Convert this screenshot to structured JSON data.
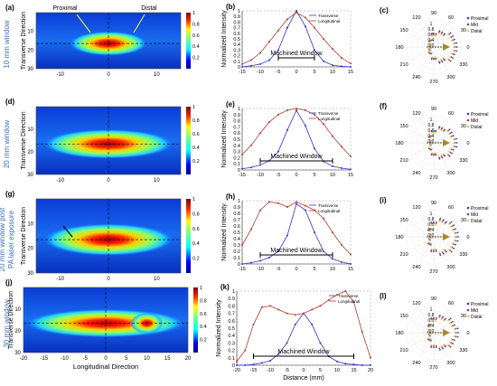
{
  "heatmap_rows": [
    {
      "row_label": "10 mm window",
      "panel_letter": "(a)",
      "ylabel": "Transverse Direction",
      "xlabel": "",
      "xticks": [
        -10,
        0,
        10
      ],
      "yticks": [
        10,
        20,
        30
      ],
      "ylim": [
        0,
        30
      ],
      "colorbar_ticks": [
        0.2,
        0.4,
        0.6,
        0.8,
        1
      ],
      "annotations": [
        "Proximal",
        "Distal"
      ],
      "window_mm": 10
    },
    {
      "row_label": "20 mm window",
      "panel_letter": "(d)",
      "ylabel": "Transverse Direction",
      "xlabel": "",
      "xticks": [
        -10,
        0,
        10
      ],
      "yticks": [
        10,
        20,
        30
      ],
      "ylim": [
        0,
        30
      ],
      "colorbar_ticks": [
        0.2,
        0.4,
        0.6,
        0.8,
        1
      ],
      "annotations": [],
      "window_mm": 20
    },
    {
      "row_label": "20 mm window post PA laser exposure",
      "row_label_lines": [
        "20 mm window post",
        "PA laser exposure"
      ],
      "panel_letter": "(g)",
      "ylabel": "Transverse Direction",
      "xlabel": "",
      "xticks": [
        -10,
        0,
        10
      ],
      "yticks": [
        10,
        20,
        30
      ],
      "ylim": [
        0,
        30
      ],
      "colorbar_ticks": [
        0.2,
        0.4,
        0.6,
        0.8,
        1
      ],
      "annotations": [],
      "window_mm": 20
    },
    {
      "row_label": "30 mm window",
      "panel_letter": "(j)",
      "ylabel": "Transverse Direction",
      "xlabel": "Longitudinal Direction",
      "xticks": [
        -20,
        -15,
        -10,
        -5,
        0,
        5,
        10,
        15,
        20
      ],
      "yticks": [
        10,
        20,
        30
      ],
      "ylim": [
        0,
        30
      ],
      "colorbar_ticks": [
        0.2,
        0.4,
        0.6,
        0.8,
        1
      ],
      "annotations": [],
      "window_mm": 30
    }
  ],
  "chart_data": [
    {
      "type": "line",
      "panel_letter": "(b)",
      "ylabel": "Normalized Intensity",
      "xlabel": "",
      "xlim": [
        -15,
        15
      ],
      "ylim": [
        0,
        1
      ],
      "xticks": [
        -15,
        -10,
        -5,
        0,
        5,
        10,
        15
      ],
      "yticks": [
        0,
        0.1,
        0.2,
        0.3,
        0.4,
        0.5,
        0.6,
        0.7,
        0.8,
        0.9,
        1
      ],
      "window_label": "Machined Window",
      "window_range": [
        -5,
        5
      ],
      "x": [
        -15,
        -12.5,
        -10,
        -7.5,
        -5,
        -2.5,
        0,
        2.5,
        5,
        7.5,
        10,
        12.5,
        15
      ],
      "series": [
        {
          "name": "Transverse",
          "color": "#3333cc",
          "values": [
            0.0,
            0.02,
            0.05,
            0.12,
            0.3,
            0.7,
            1.0,
            0.72,
            0.3,
            0.1,
            0.03,
            0.01,
            0.0
          ]
        },
        {
          "name": "Longitudinal",
          "color": "#b03a2e",
          "values": [
            0.05,
            0.12,
            0.25,
            0.45,
            0.65,
            0.85,
            0.97,
            0.88,
            0.7,
            0.5,
            0.32,
            0.16,
            0.06
          ]
        }
      ]
    },
    {
      "type": "line",
      "panel_letter": "(e)",
      "ylabel": "Normalized Intensity",
      "xlabel": "",
      "xlim": [
        -15,
        15
      ],
      "ylim": [
        0,
        1
      ],
      "xticks": [
        -15,
        -10,
        -5,
        0,
        5,
        10,
        15
      ],
      "yticks": [
        0,
        0.1,
        0.2,
        0.3,
        0.4,
        0.5,
        0.6,
        0.7,
        0.8,
        0.9,
        1
      ],
      "window_label": "Machined Window",
      "window_range": [
        -10,
        10
      ],
      "x": [
        -15,
        -12.5,
        -10,
        -7.5,
        -5,
        -2.5,
        0,
        2.5,
        5,
        7.5,
        10,
        12.5,
        15
      ],
      "series": [
        {
          "name": "Transverse",
          "color": "#3333cc",
          "values": [
            0.02,
            0.04,
            0.08,
            0.15,
            0.3,
            0.65,
            0.97,
            0.72,
            0.35,
            0.14,
            0.06,
            0.03,
            0.01
          ]
        },
        {
          "name": "Longitudinal",
          "color": "#b03a2e",
          "values": [
            0.25,
            0.4,
            0.6,
            0.78,
            0.9,
            0.97,
            1.0,
            0.97,
            0.9,
            0.75,
            0.55,
            0.38,
            0.22
          ]
        }
      ]
    },
    {
      "type": "line",
      "panel_letter": "(h)",
      "ylabel": "Normalized Intensity",
      "xlabel": "",
      "xlim": [
        -15,
        15
      ],
      "ylim": [
        0,
        1
      ],
      "xticks": [
        -15,
        -10,
        -5,
        0,
        5,
        10,
        15
      ],
      "yticks": [
        0,
        0.1,
        0.2,
        0.3,
        0.4,
        0.5,
        0.6,
        0.7,
        0.8,
        0.9,
        1
      ],
      "window_label": "Machined Window",
      "window_range": [
        -10,
        10
      ],
      "x": [
        -15,
        -12.5,
        -10,
        -7.5,
        -5,
        -2.5,
        0,
        2.5,
        5,
        7.5,
        10,
        12.5,
        15
      ],
      "series": [
        {
          "name": "Transverse",
          "color": "#3333cc",
          "values": [
            0.0,
            0.02,
            0.05,
            0.1,
            0.2,
            0.45,
            0.95,
            0.85,
            0.5,
            0.2,
            0.08,
            0.03,
            0.0
          ]
        },
        {
          "name": "Longitudinal",
          "color": "#b03a2e",
          "values": [
            0.3,
            0.55,
            0.85,
            0.98,
            0.96,
            0.9,
            0.98,
            0.92,
            0.85,
            0.72,
            0.5,
            0.3,
            0.15
          ]
        }
      ]
    },
    {
      "type": "line",
      "panel_letter": "(k)",
      "ylabel": "Normalized Intensity",
      "xlabel": "Distance (mm)",
      "xlim": [
        -20,
        20
      ],
      "ylim": [
        0,
        1
      ],
      "xticks": [
        -20,
        -15,
        -10,
        -5,
        0,
        5,
        10,
        15,
        20
      ],
      "yticks": [
        0,
        0.1,
        0.2,
        0.3,
        0.4,
        0.5,
        0.6,
        0.7,
        0.8,
        0.9,
        1
      ],
      "window_label": "Machined Window",
      "window_range": [
        -15,
        15
      ],
      "x": [
        -20,
        -17.5,
        -15,
        -12.5,
        -10,
        -7.5,
        -5,
        -2.5,
        0,
        2.5,
        5,
        7.5,
        10,
        12.5,
        15,
        17.5,
        20
      ],
      "series": [
        {
          "name": "Transverse",
          "color": "#3333cc",
          "values": [
            0.0,
            0.0,
            0.01,
            0.03,
            0.06,
            0.15,
            0.3,
            0.55,
            0.7,
            0.55,
            0.3,
            0.12,
            0.05,
            0.02,
            0.01,
            0.0,
            0.0
          ]
        },
        {
          "name": "Longitudinal",
          "color": "#b03a2e",
          "values": [
            0.05,
            0.2,
            0.55,
            0.78,
            0.8,
            0.75,
            0.7,
            0.68,
            0.7,
            0.75,
            0.8,
            0.88,
            0.95,
            1.0,
            0.85,
            0.45,
            0.1
          ]
        }
      ]
    }
  ],
  "polar_panels": [
    {
      "panel_letter": "(c)",
      "angle_labels": [
        "90",
        "60",
        "30",
        "0",
        "330",
        "300",
        "270",
        "240",
        "210",
        "180",
        "150",
        "120"
      ],
      "radial_labels": [
        "1",
        "0.8",
        "0.6",
        "0.4",
        "0.2"
      ],
      "legend": [
        "Proximal",
        "Mid",
        "Distal"
      ]
    },
    {
      "panel_letter": "(f)",
      "angle_labels": [
        "90",
        "60",
        "30",
        "0",
        "330",
        "300",
        "270",
        "240",
        "210",
        "180",
        "150",
        "120"
      ],
      "radial_labels": [
        "1",
        "0.8",
        "0.6",
        "0.4",
        "0.2"
      ],
      "legend": [
        "Proximal",
        "Mid",
        "Distal"
      ]
    },
    {
      "panel_letter": "(i)",
      "angle_labels": [
        "90",
        "60",
        "30",
        "0",
        "330",
        "300",
        "270",
        "240",
        "210",
        "180",
        "150",
        "120"
      ],
      "radial_labels": [
        "1",
        "0.8",
        "0.6",
        "0.4",
        "0.2"
      ],
      "legend": [
        "Proximal",
        "Mid",
        "Distal"
      ]
    },
    {
      "panel_letter": "(l)",
      "angle_labels": [
        "90",
        "60",
        "30",
        "0",
        "330",
        "300",
        "270",
        "240",
        "210",
        "180",
        "150",
        "120"
      ],
      "radial_labels": [
        "1",
        "0.8",
        "0.6",
        "0.4",
        "0.2"
      ],
      "legend": [
        "Proximal",
        "Mid",
        "Distal"
      ]
    }
  ],
  "colors": {
    "row_label": "#3a6fb8",
    "transverse": "#3333cc",
    "longitudinal": "#b03a2e",
    "proximal": "#3b3b9a",
    "mid": "#b03a2e",
    "distal": "#d4c97a",
    "arrow_fill": "#a8862b",
    "annotation_arrow": "#e8e05a"
  }
}
